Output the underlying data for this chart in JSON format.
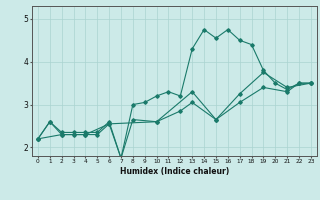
{
  "xlabel": "Humidex (Indice chaleur)",
  "ylabel": "",
  "bg_color": "#cceae8",
  "grid_color": "#aad4d0",
  "line_color": "#1a7a6a",
  "xlim": [
    -0.5,
    23.5
  ],
  "ylim": [
    1.8,
    5.3
  ],
  "yticks": [
    2,
    3,
    4,
    5
  ],
  "xticks": [
    0,
    1,
    2,
    3,
    4,
    5,
    6,
    7,
    8,
    9,
    10,
    11,
    12,
    13,
    14,
    15,
    16,
    17,
    18,
    19,
    20,
    21,
    22,
    23
  ],
  "series": [
    {
      "x": [
        0,
        1,
        2,
        3,
        4,
        5,
        6,
        7,
        8,
        9,
        10,
        11,
        12,
        13,
        14,
        15,
        16,
        17,
        18,
        19,
        20,
        21,
        22,
        23
      ],
      "y": [
        2.2,
        2.6,
        2.35,
        2.35,
        2.35,
        2.35,
        2.6,
        1.75,
        3.0,
        3.05,
        3.2,
        3.3,
        3.2,
        4.3,
        4.75,
        4.55,
        4.75,
        4.5,
        4.4,
        3.8,
        3.5,
        3.35,
        3.5,
        3.5
      ]
    },
    {
      "x": [
        0,
        1,
        2,
        3,
        4,
        5,
        6,
        7,
        8,
        10,
        12,
        13,
        15,
        17,
        19,
        21,
        22,
        23
      ],
      "y": [
        2.2,
        2.6,
        2.3,
        2.3,
        2.3,
        2.3,
        2.55,
        1.75,
        2.65,
        2.6,
        2.85,
        3.05,
        2.65,
        3.05,
        3.4,
        3.3,
        3.5,
        3.5
      ]
    },
    {
      "x": [
        0,
        2,
        4,
        6,
        10,
        13,
        15,
        17,
        19,
        21,
        23
      ],
      "y": [
        2.2,
        2.3,
        2.3,
        2.55,
        2.6,
        3.3,
        2.65,
        3.25,
        3.75,
        3.4,
        3.5
      ]
    }
  ]
}
